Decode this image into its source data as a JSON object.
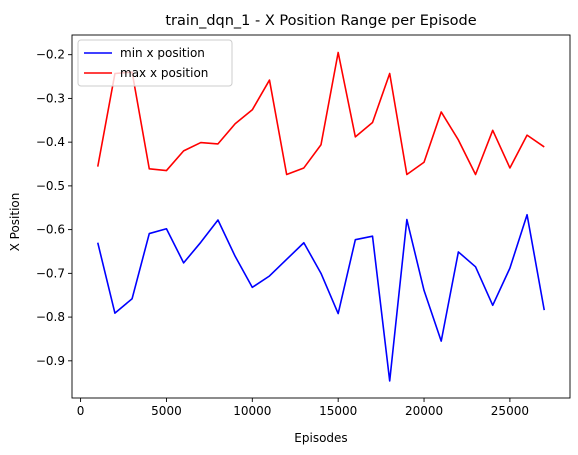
{
  "chart_data": {
    "type": "line",
    "title": "train_dqn_1 - X Position Range per Episode",
    "xlabel": "Episodes",
    "ylabel": "X Position",
    "xlim": [
      -500,
      28500
    ],
    "ylim": [
      -0.985,
      -0.155
    ],
    "xticks": [
      0,
      5000,
      10000,
      15000,
      20000,
      25000
    ],
    "yticks": [
      -0.9,
      -0.8,
      -0.7,
      -0.6,
      -0.5,
      -0.4,
      -0.3,
      -0.2
    ],
    "legend_position": "upper-left",
    "grid": false,
    "x": [
      1000,
      2000,
      3000,
      4000,
      5000,
      6000,
      7000,
      8000,
      9000,
      10000,
      11000,
      12000,
      13000,
      14000,
      15000,
      16000,
      17000,
      18000,
      19000,
      20000,
      21000,
      22000,
      23000,
      24000,
      25000,
      26000,
      27000
    ],
    "series": [
      {
        "name": "min x position",
        "color": "#0000ff",
        "values": [
          -0.63,
          -0.791,
          -0.758,
          -0.609,
          -0.598,
          -0.676,
          -0.629,
          -0.578,
          -0.661,
          -0.732,
          -0.706,
          -0.668,
          -0.63,
          -0.7,
          -0.792,
          -0.623,
          -0.615,
          -0.946,
          -0.577,
          -0.739,
          -0.855,
          -0.651,
          -0.685,
          -0.773,
          -0.688,
          -0.566,
          -0.784
        ]
      },
      {
        "name": "max x position",
        "color": "#ff0000",
        "values": [
          -0.456,
          -0.243,
          -0.24,
          -0.461,
          -0.465,
          -0.42,
          -0.401,
          -0.404,
          -0.358,
          -0.326,
          -0.258,
          -0.474,
          -0.459,
          -0.406,
          -0.195,
          -0.388,
          -0.355,
          -0.243,
          -0.474,
          -0.446,
          -0.331,
          -0.395,
          -0.474,
          -0.373,
          -0.459,
          -0.384,
          -0.411
        ]
      }
    ]
  }
}
